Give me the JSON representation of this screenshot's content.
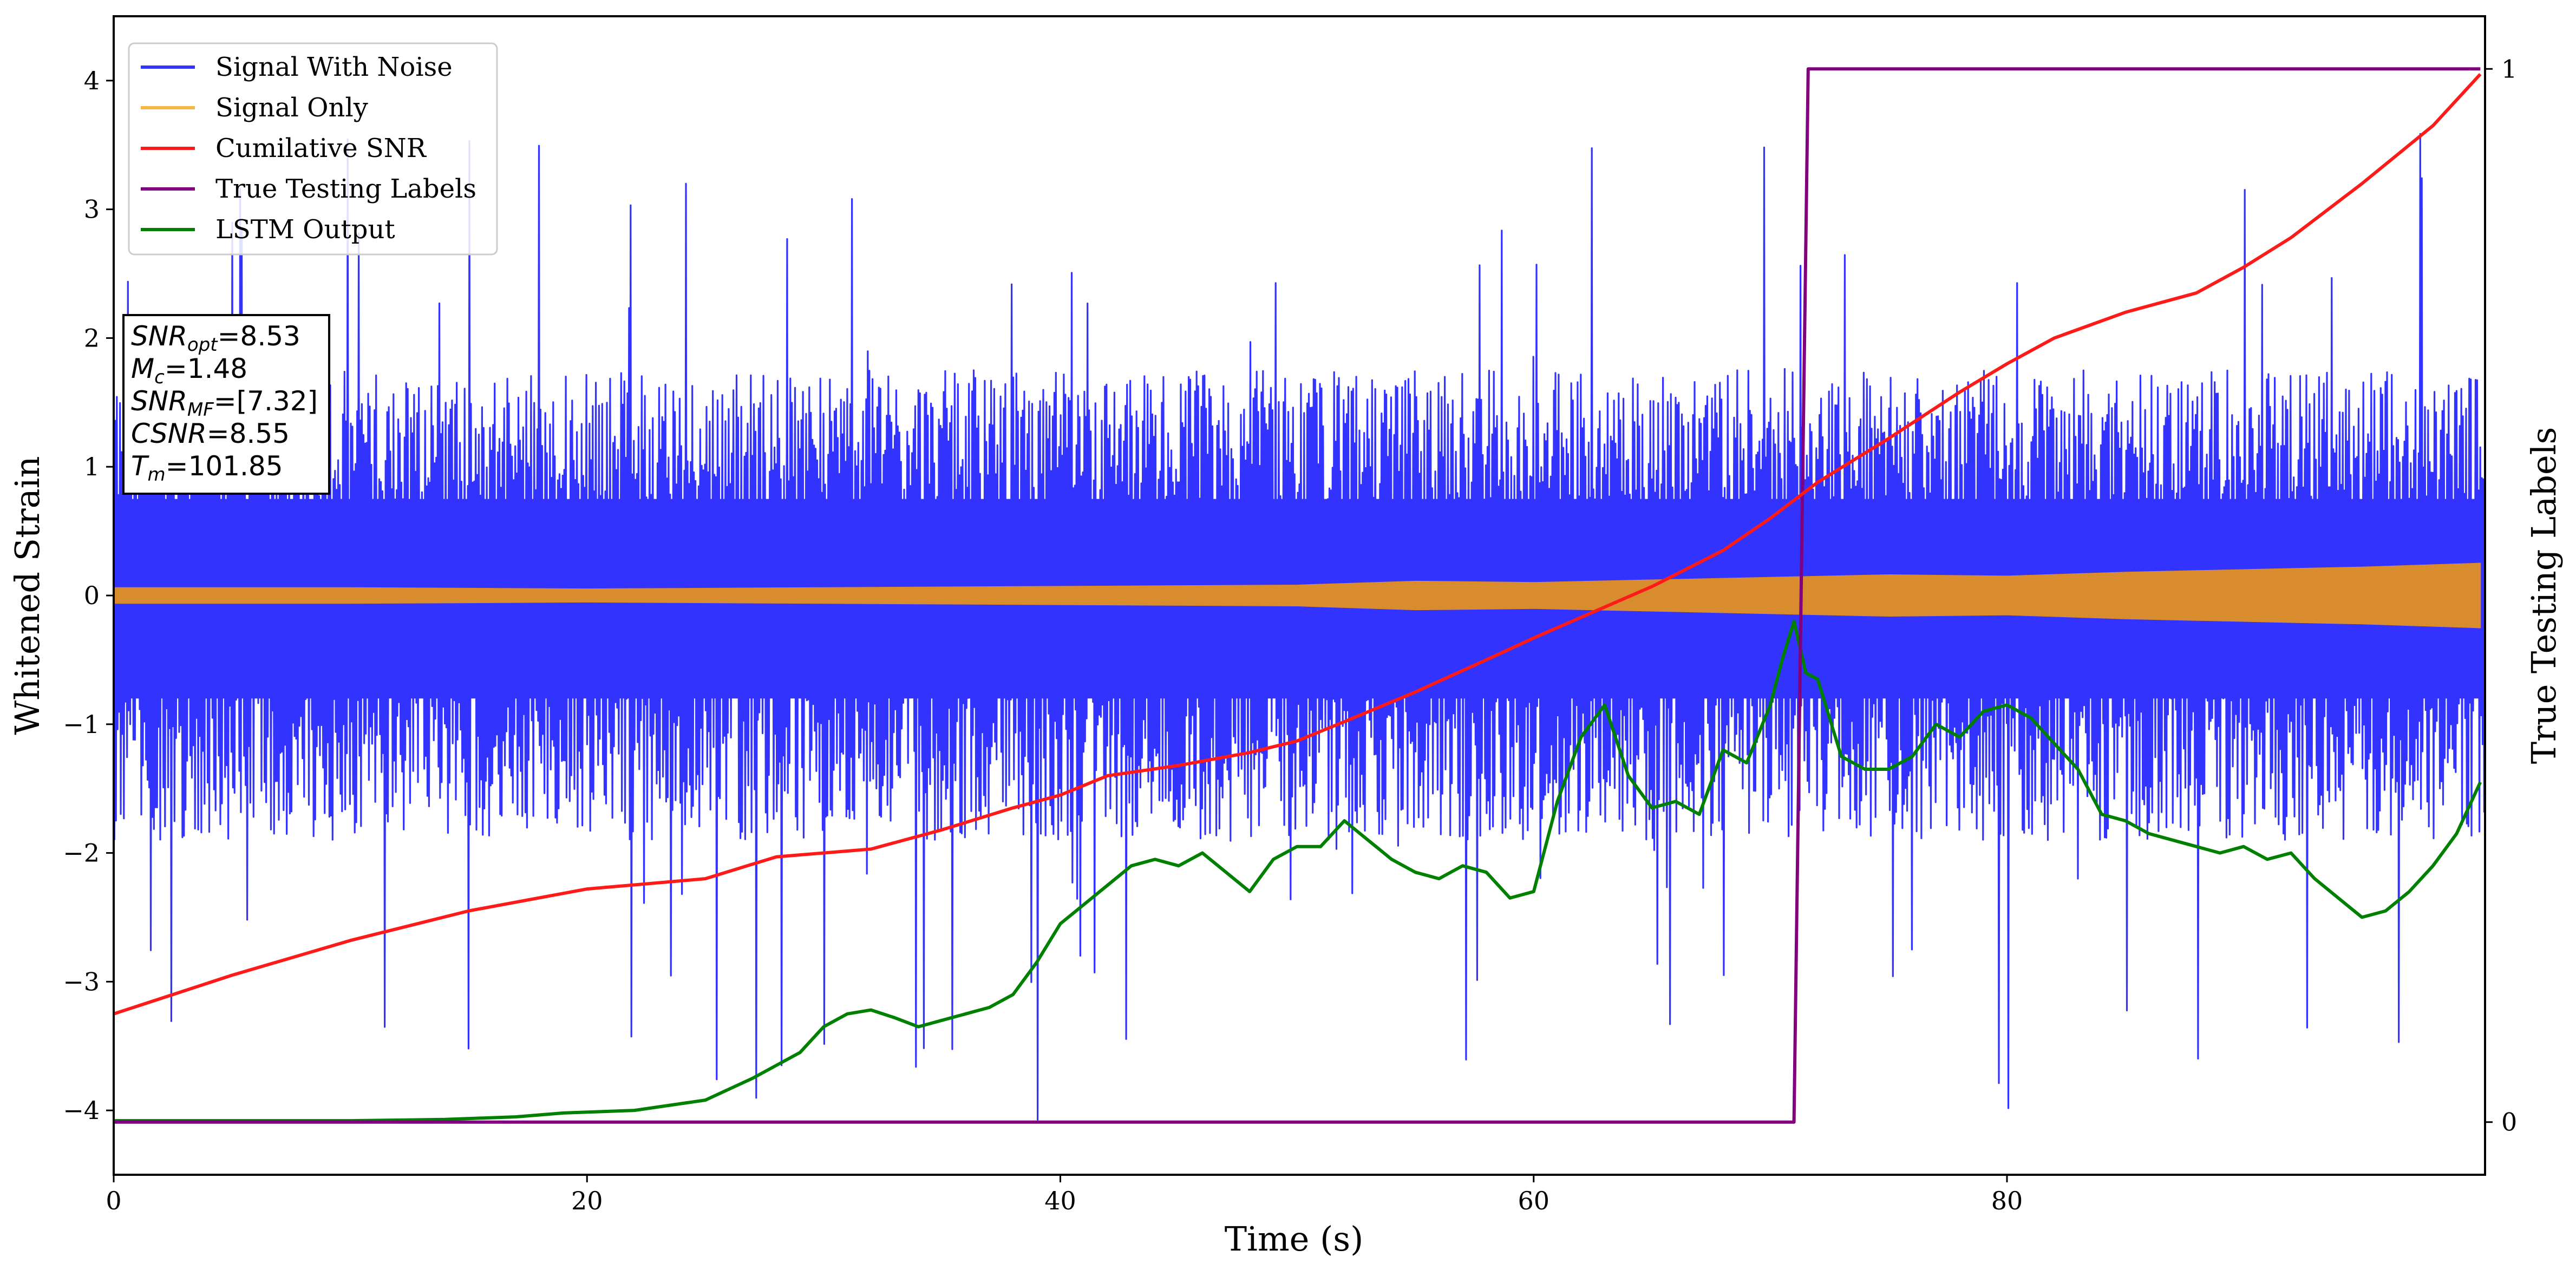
{
  "chart_data": {
    "type": "line",
    "title": "",
    "xlabel": "Time (s)",
    "ylabel": "Whitened Strain",
    "y2label": "True Testing Labels",
    "xlim": [
      0,
      100.2
    ],
    "ylim": [
      -4.5,
      4.5
    ],
    "y2lim": [
      -0.05,
      1.05
    ],
    "x_ticks": [
      0,
      20,
      40,
      60,
      80
    ],
    "y_ticks": [
      -4,
      -3,
      -2,
      -1,
      0,
      1,
      2,
      3,
      4
    ],
    "y2_ticks": [
      0,
      1
    ],
    "grid": false,
    "legend_position": "top-left",
    "legend": [
      {
        "label": "Signal With Noise",
        "color": "#3333ff"
      },
      {
        "label": "Signal Only",
        "color": "#f5b642"
      },
      {
        "label": "Cumilative SNR",
        "color": "#ff1a1a"
      },
      {
        "label": "True Testing Labels",
        "color": "#800080"
      },
      {
        "label": "LSTM Output",
        "color": "#008000"
      }
    ],
    "annotation": [
      {
        "sym": "SNR",
        "sub": "opt",
        "val": "=8.53"
      },
      {
        "sym": "M",
        "sub": "c",
        "val": "=1.48"
      },
      {
        "sym": "SNR",
        "sub": "MF",
        "val": "=[7.32]"
      },
      {
        "sym": "CSNR",
        "sub": "",
        "val": "=8.55"
      },
      {
        "sym": "T",
        "sub": "m",
        "val": "=101.85"
      }
    ],
    "series": [
      {
        "name": "Signal With Noise",
        "axis": "left",
        "color": "#3333ff",
        "style": "dense-noise",
        "x_range": [
          0,
          100.2
        ],
        "band_upper": 1.4,
        "band_lower": -1.45,
        "max": 3.62,
        "min": -4.1
      },
      {
        "name": "Signal Only",
        "axis": "left",
        "color": "#d98c2e",
        "style": "envelope",
        "x": [
          0,
          10,
          20,
          30,
          40,
          50,
          55,
          60,
          65,
          70,
          75,
          80,
          85,
          90,
          95,
          100
        ],
        "upper": [
          0.06,
          0.06,
          0.05,
          0.06,
          0.07,
          0.08,
          0.11,
          0.1,
          0.12,
          0.14,
          0.16,
          0.15,
          0.18,
          0.2,
          0.22,
          0.25
        ],
        "lower": [
          -0.06,
          -0.06,
          -0.05,
          -0.06,
          -0.07,
          -0.08,
          -0.11,
          -0.1,
          -0.12,
          -0.14,
          -0.16,
          -0.15,
          -0.18,
          -0.2,
          -0.22,
          -0.25
        ]
      },
      {
        "name": "Cumilative SNR",
        "axis": "left",
        "color": "#ff1a1a",
        "x": [
          0,
          5,
          10,
          15,
          20,
          25,
          28,
          32,
          35,
          38,
          40,
          42,
          45,
          48,
          50,
          52,
          55,
          58,
          60,
          62,
          65,
          68,
          70,
          72,
          75,
          78,
          80,
          82,
          85,
          88,
          90,
          92,
          95,
          98,
          100
        ],
        "y": [
          -3.25,
          -2.95,
          -2.68,
          -2.45,
          -2.28,
          -2.2,
          -2.03,
          -1.97,
          -1.82,
          -1.65,
          -1.55,
          -1.4,
          -1.32,
          -1.22,
          -1.13,
          -0.98,
          -0.75,
          -0.5,
          -0.33,
          -0.17,
          0.07,
          0.35,
          0.6,
          0.88,
          1.22,
          1.58,
          1.8,
          2.0,
          2.2,
          2.35,
          2.55,
          2.78,
          3.2,
          3.65,
          4.05
        ]
      },
      {
        "name": "True Testing Labels",
        "axis": "right",
        "color": "#800080",
        "x": [
          0,
          71,
          71.6,
          100
        ],
        "y": [
          0,
          0,
          1,
          1
        ]
      },
      {
        "name": "LSTM Output",
        "axis": "left",
        "color": "#008000",
        "x": [
          0,
          10,
          14,
          17,
          19,
          22,
          25,
          27,
          29,
          30,
          31,
          32,
          33,
          34,
          35,
          36,
          37,
          38,
          39,
          40,
          41,
          42,
          43,
          44,
          45,
          46,
          47,
          48,
          49,
          50,
          51,
          52,
          53,
          54,
          55,
          56,
          57,
          58,
          59,
          60,
          61,
          62,
          63,
          64,
          65,
          66,
          67,
          68,
          69,
          70,
          70.5,
          71,
          71.5,
          72,
          73,
          74,
          75,
          76,
          77,
          78,
          79,
          80,
          81,
          82,
          83,
          84,
          85,
          86,
          87,
          88,
          89,
          90,
          91,
          92,
          93,
          94,
          95,
          96,
          97,
          98,
          99,
          100
        ],
        "y": [
          -4.08,
          -4.08,
          -4.07,
          -4.05,
          -4.02,
          -4.0,
          -3.92,
          -3.75,
          -3.55,
          -3.35,
          -3.25,
          -3.22,
          -3.28,
          -3.35,
          -3.3,
          -3.25,
          -3.2,
          -3.1,
          -2.85,
          -2.55,
          -2.4,
          -2.25,
          -2.1,
          -2.05,
          -2.1,
          -2.0,
          -2.15,
          -2.3,
          -2.05,
          -1.95,
          -1.95,
          -1.75,
          -1.9,
          -2.05,
          -2.15,
          -2.2,
          -2.1,
          -2.15,
          -2.35,
          -2.3,
          -1.6,
          -1.1,
          -0.85,
          -1.4,
          -1.65,
          -1.6,
          -1.7,
          -1.2,
          -1.3,
          -0.85,
          -0.5,
          -0.2,
          -0.6,
          -0.65,
          -1.25,
          -1.35,
          -1.35,
          -1.25,
          -1.0,
          -1.1,
          -0.9,
          -0.85,
          -0.95,
          -1.15,
          -1.35,
          -1.7,
          -1.75,
          -1.85,
          -1.9,
          -1.95,
          -2.0,
          -1.95,
          -2.05,
          -2.0,
          -2.2,
          -2.35,
          -2.5,
          -2.45,
          -2.3,
          -2.1,
          -1.85,
          -1.45
        ]
      }
    ]
  }
}
